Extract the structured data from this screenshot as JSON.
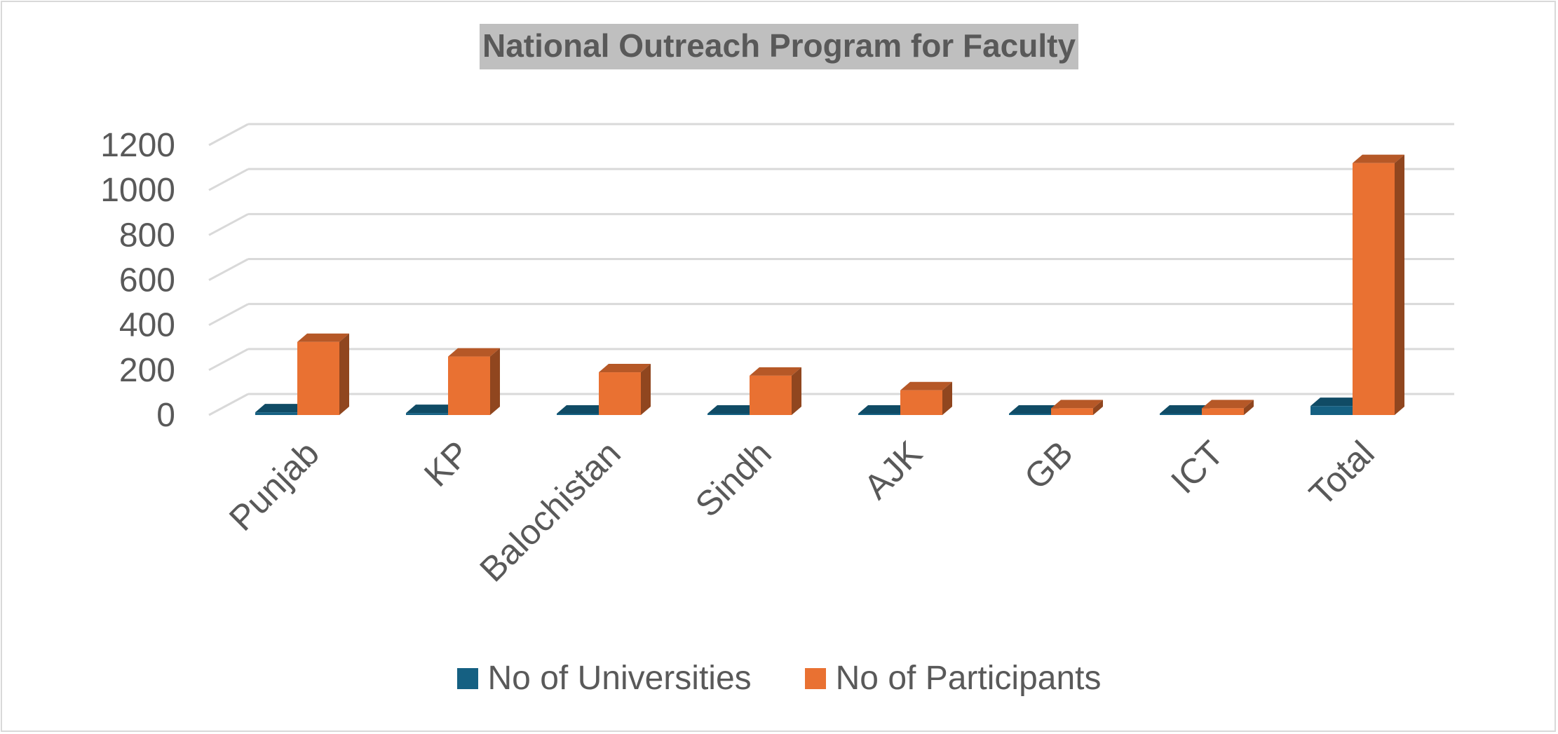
{
  "colors": {
    "universities": "#156082",
    "participants": "#E97132",
    "grid": "#d9d9d9",
    "text": "#595959"
  },
  "chart_data": {
    "type": "bar",
    "title": "National Outreach Program for Faculty",
    "xlabel": "",
    "ylabel": "",
    "ylim": [
      0,
      1200
    ],
    "yticks": [
      0,
      200,
      400,
      600,
      800,
      1000,
      1200
    ],
    "grid": true,
    "legend_position": "bottom",
    "categories": [
      "Punjab",
      "KP",
      "Balochistan",
      "Sindh",
      "AJK",
      "GB",
      "ICT",
      "Total"
    ],
    "series": [
      {
        "name": "No of Universities",
        "values": [
          12,
          9,
          6,
          6,
          3,
          2,
          2,
          40
        ]
      },
      {
        "name": "No of Participants",
        "values": [
          325,
          260,
          190,
          175,
          110,
          30,
          30,
          1120
        ]
      }
    ]
  }
}
